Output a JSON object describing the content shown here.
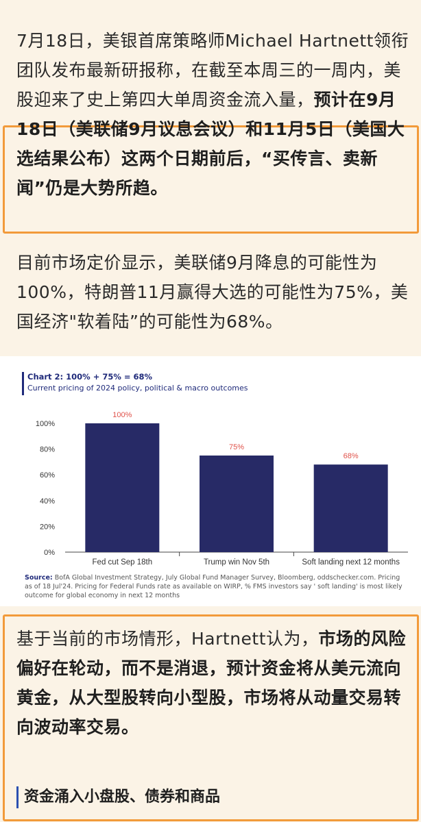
{
  "paragraph1": {
    "normal": "7月18日，美银首席策略师Michael Hartnett领衔团队发布最新研报称，在截至本周三的一周内，美股迎来了史上第四大单周资金流入量，",
    "bold": "预计在9月18日（美联储9月议息会议）和11月5日（美国大选结果公布）这两个日期前后，“买传言、卖新闻”仍是大势所趋。"
  },
  "paragraph2": "目前市场定价显示，美联储9月降息的可能性为100%，特朗普11月赢得大选的可能性为75%，美国经济\"软着陆”的可能性为68%。",
  "chart_data": {
    "type": "bar",
    "title": "Chart 2: 100% + 75% = 68%",
    "subtitle": "Current pricing of 2024 policy, political & macro outcomes",
    "categories": [
      "Fed cut Sep 18th",
      "Trump win Nov 5th",
      "Soft landing next 12 months"
    ],
    "values": [
      100,
      75,
      68
    ],
    "data_labels": [
      "100%",
      "75%",
      "68%"
    ],
    "y_ticks": [
      "0%",
      "20%",
      "40%",
      "60%",
      "80%",
      "100%"
    ],
    "ylim": [
      0,
      100
    ],
    "grid": false,
    "bar_color": "#272a66",
    "label_color": "#e0524a",
    "source_label": "Source:",
    "source_text": "BofA Global Investment Strategy, July Global Fund Manager Survey, Bloomberg, oddschecker.com. Pricing as of 18 Jul'24. Pricing for Federal Funds rate as available on WIRP, % FMS investors say ' soft landing' is most likely outcome for global economy in next 12 months"
  },
  "paragraph3": {
    "normal": "基于当前的市场情形，Hartnett认为，",
    "bold": "市场的风险偏好在轮动，而不是消退，预计资金将从美元流向黄金，从大型股转向小型股，市场将从动量交易转向波动率交易。"
  },
  "section_heading": "资金涌入小盘股、债券和商品",
  "colors": {
    "highlight_border": "#f29a3a",
    "background": "#fbf3e6",
    "heading_bar": "#2b4fb0"
  }
}
